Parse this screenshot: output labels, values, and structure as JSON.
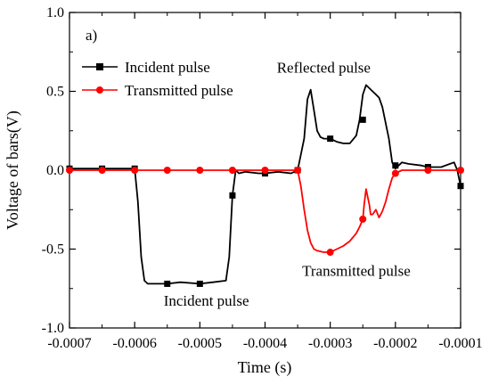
{
  "chart_data": {
    "type": "line",
    "title": "",
    "xlabel": "Time (s)",
    "ylabel": "Voltage of bars(V)",
    "xlim": [
      -0.0007,
      -0.0001
    ],
    "ylim": [
      -1.0,
      1.0
    ],
    "x_ticks": [
      -0.0007,
      -0.0006,
      -0.0005,
      -0.0004,
      -0.0003,
      -0.0002,
      -0.0001
    ],
    "x_tick_labels": [
      "-0.0007",
      "-0.0006",
      "-0.0005",
      "-0.0004",
      "-0.0003",
      "-0.0002",
      "-0.0001"
    ],
    "y_ticks": [
      -1.0,
      -0.5,
      0.0,
      0.5,
      1.0
    ],
    "y_tick_labels": [
      "-1.0",
      "-0.5",
      "0.0",
      "0.5",
      "1.0"
    ],
    "panel_label": "a)",
    "legend_position": "upper-left",
    "annotations": [
      {
        "text": "Reflected pulse",
        "x": -0.00031,
        "y": 0.62
      },
      {
        "text": "Transmitted pulse",
        "x": -0.00026,
        "y": -0.67
      },
      {
        "text": "Incident pulse",
        "x": -0.00049,
        "y": -0.86
      }
    ],
    "series": [
      {
        "name": "Incident pulse",
        "color": "#000000",
        "marker": "square",
        "x": [
          -0.0007,
          -0.00065,
          -0.0006,
          -0.000595,
          -0.00059,
          -0.000585,
          -0.00058,
          -0.000575,
          -0.00057,
          -0.00055,
          -0.00053,
          -0.0005,
          -0.00048,
          -0.00046,
          -0.000455,
          -0.00045,
          -0.000445,
          -0.00044,
          -0.00043,
          -0.00041,
          -0.0004,
          -0.00038,
          -0.00036,
          -0.00035,
          -0.00034,
          -0.000335,
          -0.00033,
          -0.000325,
          -0.00032,
          -0.000315,
          -0.00031,
          -0.0003,
          -0.00029,
          -0.00028,
          -0.00027,
          -0.00026,
          -0.000255,
          -0.00025,
          -0.000245,
          -0.00024,
          -0.000235,
          -0.00023,
          -0.000225,
          -0.00022,
          -0.00021,
          -0.000205,
          -0.0002,
          -0.00019,
          -0.00018,
          -0.00016,
          -0.00015,
          -0.00013,
          -0.00011,
          -0.000105,
          -0.0001
        ],
        "y": [
          0.01,
          0.01,
          0.01,
          -0.2,
          -0.55,
          -0.7,
          -0.72,
          -0.72,
          -0.72,
          -0.72,
          -0.71,
          -0.72,
          -0.71,
          -0.7,
          -0.55,
          -0.16,
          0.0,
          -0.02,
          -0.01,
          -0.02,
          -0.02,
          -0.01,
          -0.02,
          0.0,
          0.2,
          0.45,
          0.51,
          0.38,
          0.25,
          0.21,
          0.2,
          0.2,
          0.18,
          0.17,
          0.17,
          0.22,
          0.32,
          0.48,
          0.54,
          0.52,
          0.5,
          0.48,
          0.46,
          0.4,
          0.2,
          0.05,
          0.01,
          0.05,
          0.04,
          0.03,
          0.02,
          0.02,
          0.05,
          0.0,
          -0.1
        ],
        "markers_x": [
          -0.0007,
          -0.00065,
          -0.0006,
          -0.00055,
          -0.0005,
          -0.00045,
          -0.0004,
          -0.00035,
          -0.0003,
          -0.00025,
          -0.0002,
          -0.00015,
          -0.0001
        ],
        "markers_y": [
          0.01,
          0.01,
          0.01,
          -0.72,
          -0.72,
          -0.16,
          -0.02,
          0.0,
          0.2,
          0.32,
          0.03,
          0.02,
          -0.1
        ]
      },
      {
        "name": "Transmitted pulse",
        "color": "#ff0000",
        "marker": "circle",
        "x": [
          -0.0007,
          -0.00065,
          -0.0006,
          -0.00055,
          -0.0005,
          -0.00045,
          -0.0004,
          -0.00036,
          -0.00035,
          -0.000345,
          -0.00034,
          -0.000335,
          -0.00033,
          -0.000325,
          -0.00032,
          -0.00031,
          -0.0003,
          -0.00029,
          -0.00028,
          -0.00027,
          -0.00026,
          -0.000255,
          -0.00025,
          -0.000248,
          -0.000245,
          -0.00024,
          -0.000238,
          -0.000235,
          -0.00023,
          -0.000225,
          -0.00022,
          -0.000215,
          -0.00021,
          -0.000205,
          -0.0002,
          -0.00019,
          -0.00017,
          -0.00015,
          -0.00013,
          -0.00011,
          -0.0001
        ],
        "y": [
          0.0,
          0.0,
          0.0,
          0.0,
          0.0,
          0.0,
          0.0,
          0.0,
          0.0,
          -0.1,
          -0.25,
          -0.38,
          -0.46,
          -0.5,
          -0.51,
          -0.52,
          -0.52,
          -0.5,
          -0.48,
          -0.45,
          -0.4,
          -0.36,
          -0.31,
          -0.22,
          -0.12,
          -0.22,
          -0.28,
          -0.28,
          -0.25,
          -0.3,
          -0.26,
          -0.2,
          -0.12,
          -0.05,
          -0.02,
          0.0,
          0.0,
          0.0,
          0.0,
          0.0,
          0.0
        ],
        "markers_x": [
          -0.0007,
          -0.00065,
          -0.0006,
          -0.00055,
          -0.0005,
          -0.00045,
          -0.0004,
          -0.00035,
          -0.0003,
          -0.00025,
          -0.0002,
          -0.00015,
          -0.0001
        ],
        "markers_y": [
          0.0,
          0.0,
          0.0,
          0.0,
          0.0,
          0.0,
          0.0,
          0.0,
          -0.52,
          -0.31,
          -0.02,
          0.0,
          0.0
        ]
      }
    ]
  }
}
